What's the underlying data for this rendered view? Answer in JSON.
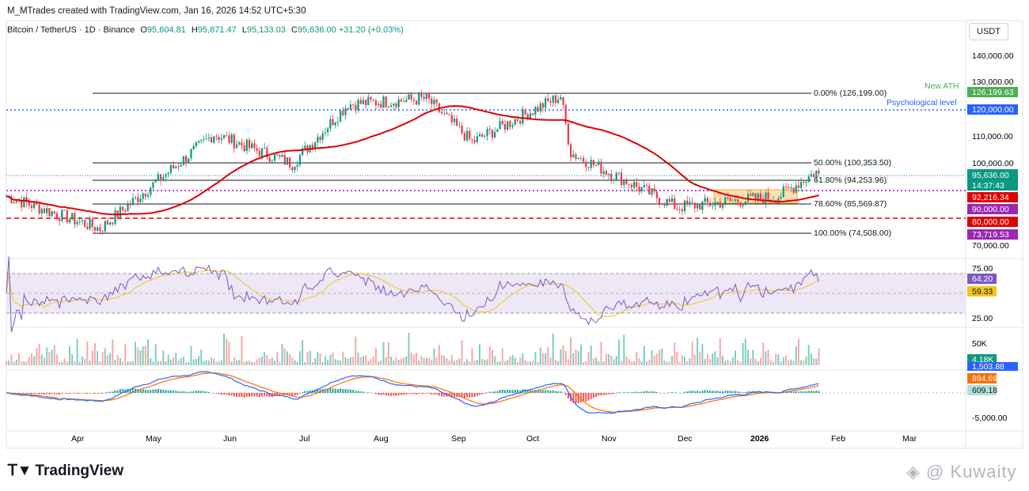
{
  "header": {
    "credit": "M_MTrades created with TradingView.com, Jan 16, 2026 14:52 UTC+5:30",
    "symbol": "Bitcoin / TetherUS · 1D · Binance",
    "o_label": "O",
    "o_val": "95,604.81",
    "h_label": "H",
    "h_val": "95,871.47",
    "l_label": "L",
    "l_val": "95,133.03",
    "c_label": "C",
    "c_val": "95,636.00",
    "chg": "+31.20 (+0.03%)",
    "currency": "USDT"
  },
  "colors": {
    "up": "#089981",
    "down": "#f23645",
    "ma": "#e00000",
    "rsi": "#7e57c2",
    "rsi_ma": "#f5c518",
    "macd": "#2962ff",
    "signal": "#ff6d00",
    "fib": "#131722",
    "psych": "#2962ff",
    "support": "#b000b0",
    "level80": "#e00000"
  },
  "price_axis": {
    "ticks": [
      "140,000.00",
      "130,000.00",
      "110,000.00",
      "100,000.00",
      "70,000.00"
    ]
  },
  "rsi_axis": {
    "ticks": [
      "75.00",
      "25.00"
    ]
  },
  "vol_axis": {
    "ticks": [
      "50K"
    ]
  },
  "macd_axis": {
    "ticks": [
      "-5,000.00"
    ]
  },
  "x_axis": {
    "labels": [
      "Apr",
      "May",
      "Jun",
      "Jul",
      "Aug",
      "Sep",
      "Oct",
      "Nov",
      "Dec",
      "2026",
      "Feb",
      "Mar"
    ]
  },
  "annotations": {
    "fib_0": "0.00% (126,199.00)",
    "fib_50": "50.00% (100,353.50)",
    "fib_618": "61.80% (94,253.96)",
    "fib_786": "78.60% (85,569.87)",
    "fib_100": "100.00% (74,508.00)",
    "new_ath": "New ATH",
    "psych": "Psychological level"
  },
  "badges": {
    "ath": "126,199.63",
    "psych": "120,000.00",
    "price": "95,636.00",
    "timer": "14:37:43",
    "ma": "92,216.34",
    "s90": "90,000.00",
    "s80": "80,000.00",
    "low": "73,719.53",
    "rsi": "64.20",
    "rsi_ma": "59.33",
    "vol": "4.18K",
    "macd_sig": "894.69",
    "macd_hist": "609.18",
    "macd_line": "1,503.88"
  },
  "footer": {
    "logo": "TradingView",
    "watermark": "@ Kuwaity"
  },
  "chart_data": [
    {
      "type": "candlestick",
      "title": "Bitcoin / TetherUS · 1D · Binance",
      "x_range": [
        "2025-03-01",
        "2026-03-15"
      ],
      "y_range": [
        70000,
        140000
      ],
      "key_points": [
        {
          "date": "2025-04-07",
          "close": 76000
        },
        {
          "date": "2025-05-22",
          "close": 111000
        },
        {
          "date": "2025-06-22",
          "close": 100000
        },
        {
          "date": "2025-07-14",
          "close": 122000
        },
        {
          "date": "2025-08-14",
          "close": 124000
        },
        {
          "date": "2025-09-01",
          "close": 108000
        },
        {
          "date": "2025-10-06",
          "close": 125000
        },
        {
          "date": "2025-10-10",
          "close": 104000
        },
        {
          "date": "2025-11-21",
          "close": 84000
        },
        {
          "date": "2025-12-31",
          "close": 88000
        },
        {
          "date": "2026-01-15",
          "close": 97000
        },
        {
          "date": "2026-01-16",
          "close": 95636
        }
      ],
      "horizontal_levels": [
        126199,
        120000,
        100353.5,
        94253.96,
        90000,
        85569.87,
        80000,
        74508
      ],
      "moving_average_last": 92216.34
    },
    {
      "type": "line",
      "title": "RSI",
      "y_range": [
        25,
        75
      ],
      "series": [
        {
          "values_last": 64.2
        },
        {
          "values_last": 59.33
        }
      ]
    },
    {
      "type": "bar",
      "title": "Volume",
      "last": "4.18K"
    },
    {
      "type": "line",
      "title": "MACD",
      "last": {
        "macd": 1503.88,
        "signal": 894.69,
        "histogram": 609.18
      }
    }
  ]
}
